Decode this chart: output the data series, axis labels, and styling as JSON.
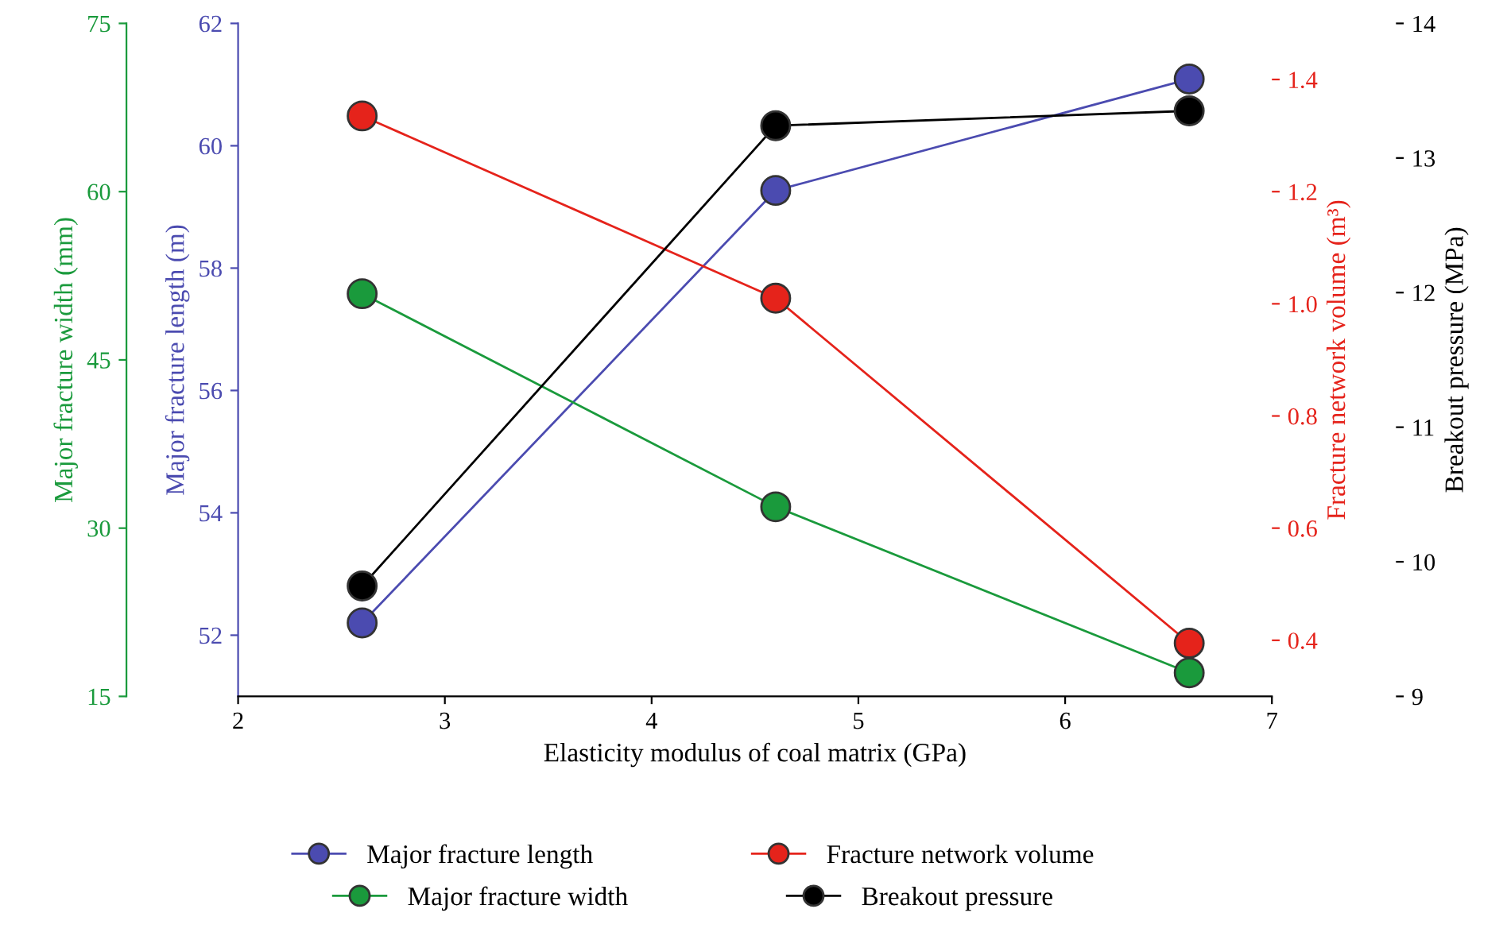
{
  "chart_data": [
    {
      "type": "line",
      "xlabel": "Elasticity modulus of coal matrix (GPa)",
      "ylabel": "Major fracture length (m)",
      "y2label": "Fracture network volume (m³)",
      "x": [
        2.6,
        4.6,
        6.6
      ],
      "xlim": [
        2,
        7
      ],
      "xticks": [
        2,
        3,
        4,
        5,
        6,
        7
      ],
      "ylim": [
        51,
        62
      ],
      "yticks": [
        52,
        54,
        56,
        58,
        60,
        62
      ],
      "y2lim": [
        0.3,
        1.5
      ],
      "y2ticks": [
        0.4,
        0.6,
        0.8,
        {
          "value": 1.0,
          "label": "1.0"
        },
        1.2,
        1.4
      ],
      "marker": "circle",
      "line_style": "solid",
      "legend": "bottom",
      "series": [
        {
          "name": "Major fracture length",
          "color": "#4b4bb0",
          "values": [
            52.2,
            59.27,
            61.09
          ]
        },
        {
          "name": "Fracture network volume",
          "color": "#e5231b",
          "axis": "y2",
          "values": [
            1.335,
            1.01,
            0.395
          ]
        }
      ]
    },
    {
      "type": "line",
      "ylabel": "Major fracture width (mm)",
      "y2label": "Breakout pressure (MPa)",
      "tick_labels": "y",
      "x": [
        2.6,
        4.6,
        6.6
      ],
      "xlim": [
        2,
        7
      ],
      "ylim": [
        15,
        75
      ],
      "yticks": [
        15,
        30,
        45,
        60,
        75
      ],
      "y2lim": [
        9,
        14
      ],
      "y2ticks": [
        9,
        10,
        11,
        12,
        13,
        14
      ],
      "marker": "circle",
      "line_style": "solid",
      "legend": "bottom",
      "series": [
        {
          "name": "Major fracture width",
          "color": "#1a9a3c",
          "values": [
            50.9,
            31.9,
            17.1
          ]
        },
        {
          "name": "Breakout pressure",
          "color": "#000000",
          "axis": "y2",
          "values": [
            9.82,
            13.24,
            13.35
          ]
        }
      ]
    }
  ]
}
